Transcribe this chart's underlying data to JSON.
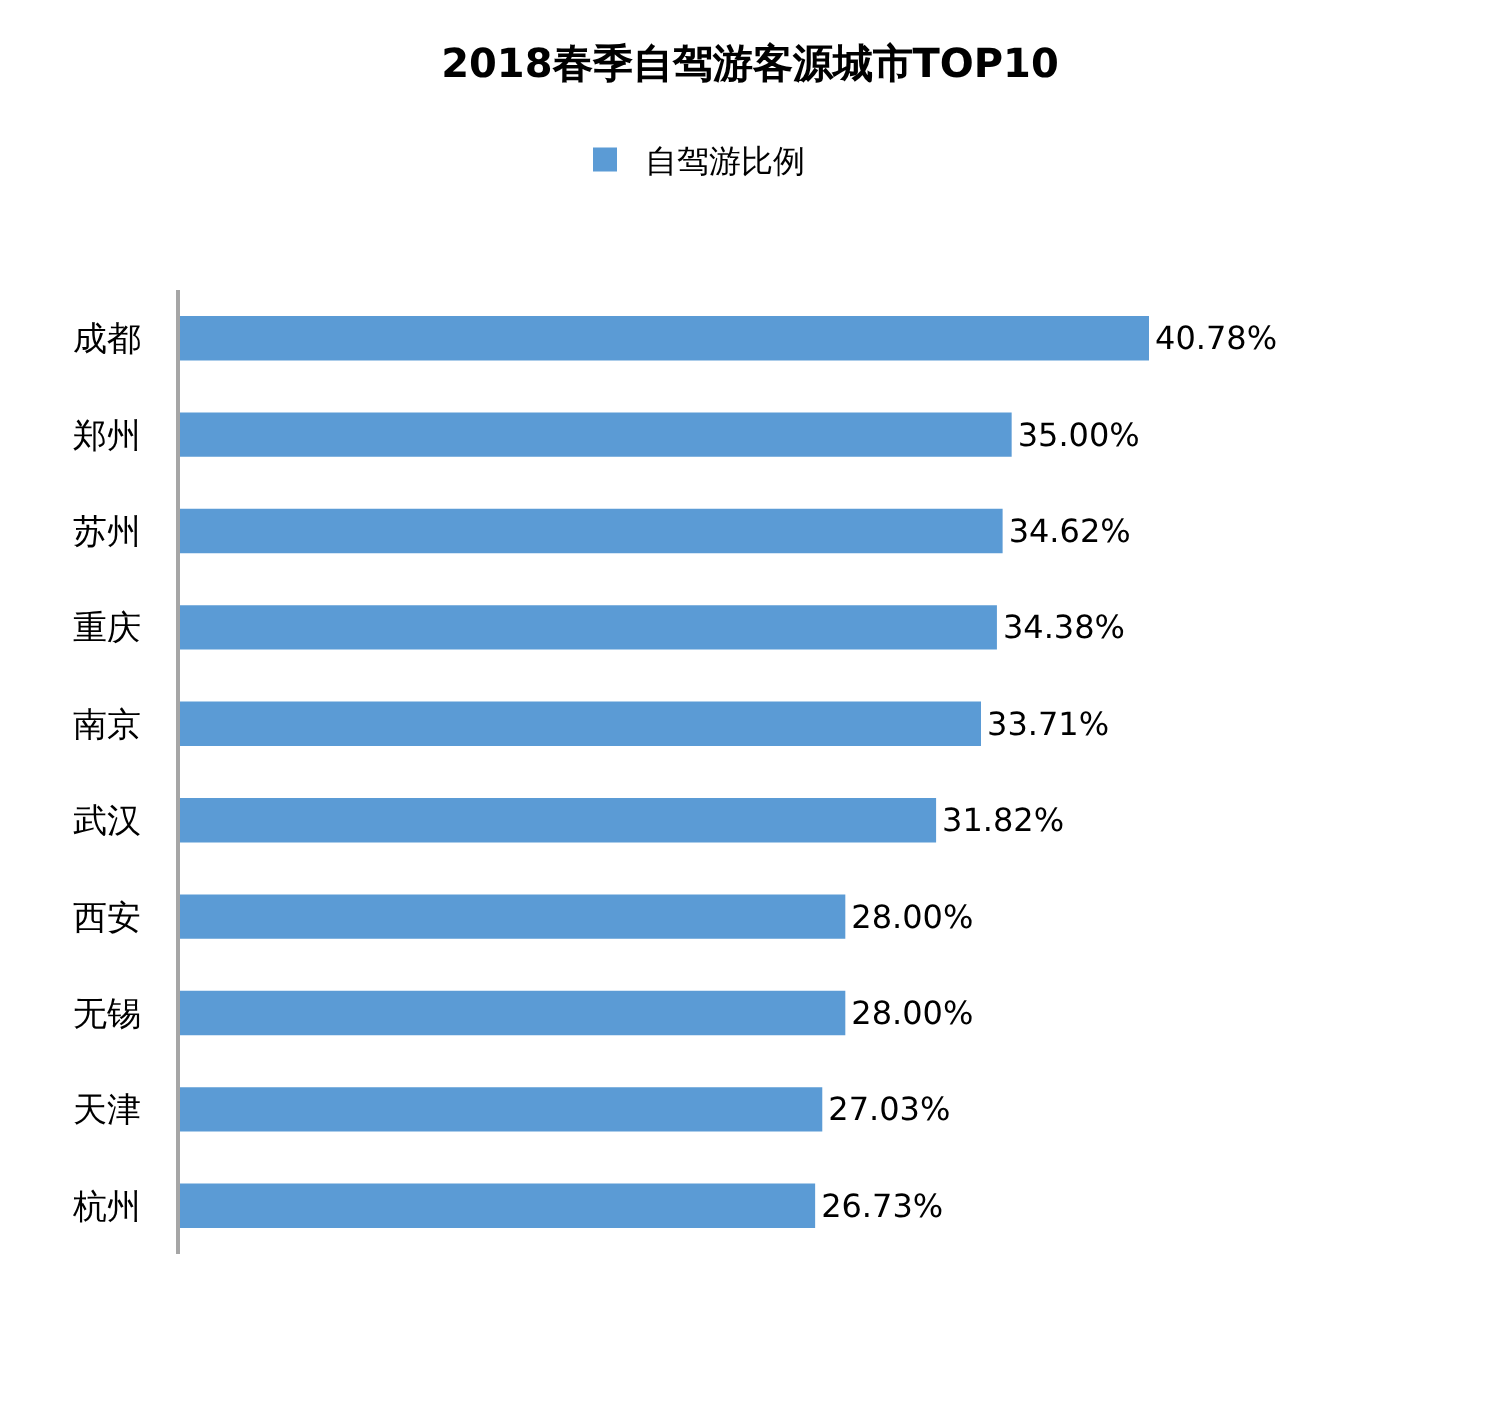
{
  "chart_data": {
    "type": "bar",
    "orientation": "horizontal",
    "title": "2018春季自驾游客源城市TOP10",
    "categories": [
      "成都",
      "郑州",
      "苏州",
      "重庆",
      "南京",
      "武汉",
      "西安",
      "无锡",
      "天津",
      "杭州"
    ],
    "series": [
      {
        "name": "自驾游比例",
        "color": "#5b9bd5",
        "values": [
          40.78,
          35.0,
          34.62,
          34.38,
          33.71,
          31.82,
          28.0,
          28.0,
          27.03,
          26.73
        ],
        "value_labels": [
          "40.78%",
          "35.00%",
          "34.62%",
          "34.38%",
          "33.71%",
          "31.82%",
          "28.00%",
          "28.00%",
          "27.03%",
          "26.73%"
        ]
      }
    ],
    "tick_labels": "y",
    "legend": "top"
  }
}
